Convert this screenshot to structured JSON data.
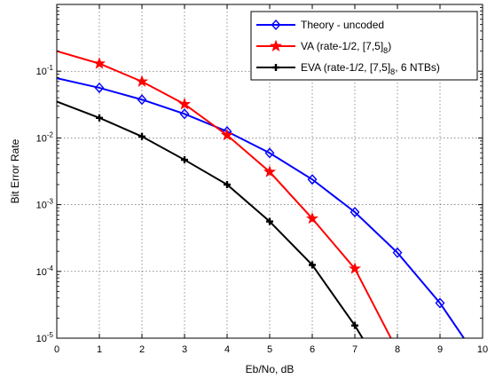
{
  "chart_data": {
    "type": "line",
    "title": "",
    "xlabel": "Eb/No, dB",
    "ylabel": "Bit Error Rate",
    "xlim": [
      0,
      10
    ],
    "ylim": [
      1e-05,
      1
    ],
    "yscale": "log",
    "grid": true,
    "legend_position": "top-right",
    "x_ticks": [
      "0",
      "1",
      "2",
      "3",
      "4",
      "5",
      "6",
      "7",
      "8",
      "9",
      "10"
    ],
    "y_ticks": [
      {
        "base": "10",
        "exp": "-5",
        "value": 1e-05
      },
      {
        "base": "10",
        "exp": "-4",
        "value": 0.0001
      },
      {
        "base": "10",
        "exp": "-3",
        "value": 0.001
      },
      {
        "base": "10",
        "exp": "-2",
        "value": 0.01
      },
      {
        "base": "10",
        "exp": "-1",
        "value": 0.1
      }
    ],
    "series": [
      {
        "name_parts": [
          {
            "t": "Theory - uncoded"
          }
        ],
        "color": "#0000ff",
        "marker": "diamond",
        "x": [
          0,
          1,
          2,
          3,
          4,
          5,
          6,
          7,
          8,
          9,
          10
        ],
        "y": [
          0.0786,
          0.0563,
          0.0375,
          0.0229,
          0.0125,
          0.00595,
          0.00239,
          0.000773,
          0.000191,
          3.36e-05,
          3.87e-06
        ],
        "marker_x": [
          1,
          2,
          3,
          4,
          5,
          6,
          7,
          8,
          9
        ]
      },
      {
        "name_parts": [
          {
            "t": "VA (rate-1/2, [7,5]"
          },
          {
            "t": "8",
            "sub": true
          },
          {
            "t": ")"
          }
        ],
        "color": "#ff0000",
        "marker": "star",
        "x": [
          0,
          1,
          2,
          3,
          4,
          5,
          6,
          7,
          8
        ],
        "y": [
          0.2,
          0.13,
          0.07,
          0.032,
          0.011,
          0.0031,
          0.00062,
          0.00011,
          6.5e-06
        ],
        "marker_x": [
          1,
          2,
          3,
          4,
          5,
          6,
          7
        ]
      },
      {
        "name_parts": [
          {
            "t": "EVA (rate-1/2, [7,5]"
          },
          {
            "t": "8",
            "sub": true
          },
          {
            "t": ", 6 NTBs)"
          }
        ],
        "color": "#000000",
        "marker": "plus",
        "x": [
          0,
          1,
          2,
          3,
          4,
          5,
          6,
          7,
          7.3
        ],
        "y": [
          0.035,
          0.02,
          0.0105,
          0.0047,
          0.002,
          0.00056,
          0.000125,
          1.55e-05,
          7.5e-06
        ],
        "marker_x": [
          1,
          2,
          3,
          4,
          5,
          6,
          7
        ]
      }
    ]
  }
}
